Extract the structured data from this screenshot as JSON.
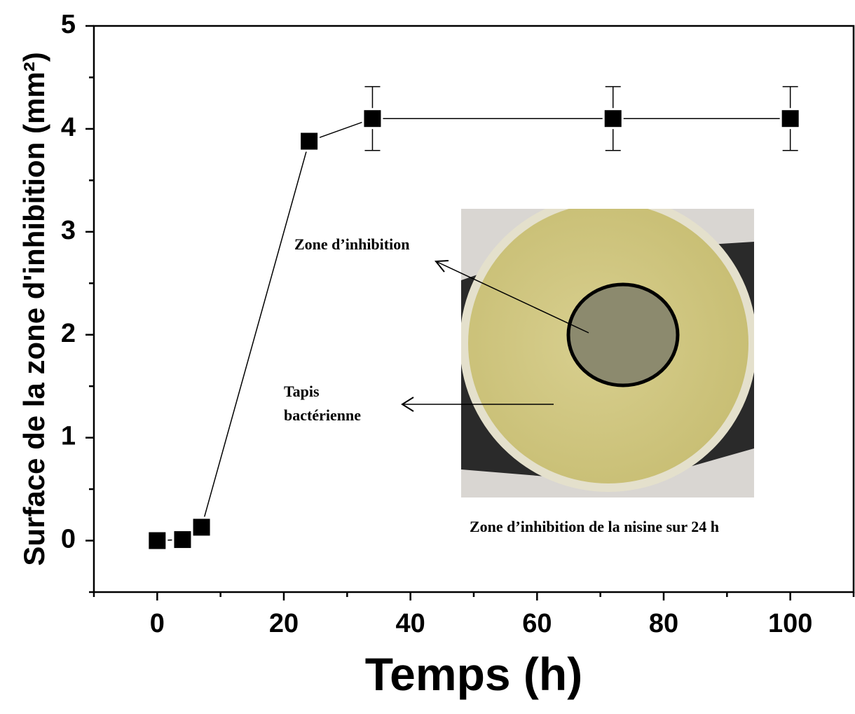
{
  "chart_data": {
    "type": "line",
    "ylabel": "Surface de la zone d'inhibition (mm²)",
    "xlabel": "Temps (h)",
    "x": [
      0,
      4,
      7,
      24,
      34,
      72,
      100
    ],
    "series": [
      {
        "color": "#000000",
        "values": [
          0,
          0.01,
          0.13,
          3.88,
          4.1,
          4.1,
          4.1
        ],
        "errors": [
          null,
          null,
          null,
          null,
          0.31,
          0.31,
          0.31
        ]
      }
    ],
    "xlim": [
      -10,
      110
    ],
    "xticks": [
      0,
      20,
      40,
      60,
      80,
      100
    ],
    "xminorticks": [
      -10,
      10,
      30,
      50,
      70,
      90,
      110
    ],
    "ylim": [
      -0.5,
      5
    ],
    "yticks": [
      0,
      1,
      2,
      3,
      4,
      5
    ],
    "yminorticks": [
      -0.5,
      0.5,
      1.5,
      2.5,
      3.5,
      4.5
    ],
    "inset": {
      "labels": [
        "Zone d’inhibition",
        "Tapis",
        "bactérienne"
      ],
      "caption": "Zone d’inhibition de la nisine sur 24 h"
    }
  }
}
